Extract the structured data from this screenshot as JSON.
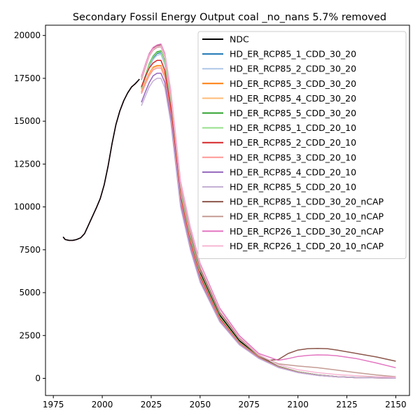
{
  "chart_data": {
    "type": "line",
    "title": "Secondary Fossil Energy Output coal _no_nans 5.7% removed",
    "xlabel": "",
    "ylabel": "",
    "xlim": [
      1971,
      2157
    ],
    "ylim": [
      -1000,
      20600
    ],
    "xticks": [
      1975,
      2000,
      2025,
      2050,
      2075,
      2100,
      2125,
      2150
    ],
    "yticks": [
      0,
      2500,
      5000,
      7500,
      10000,
      12500,
      15000,
      17500,
      20000
    ],
    "grid": false,
    "legend_position": "top-right",
    "history": {
      "x": [
        1980,
        1981,
        1983,
        1985,
        1987,
        1989,
        1991,
        1993,
        1995,
        1997,
        1999,
        2001,
        2003,
        2005,
        2007,
        2009,
        2011,
        2013,
        2015,
        2017,
        2019
      ],
      "y": [
        8250,
        8100,
        8050,
        8050,
        8100,
        8200,
        8450,
        8950,
        9450,
        9950,
        10500,
        11300,
        12400,
        13700,
        14800,
        15600,
        16200,
        16650,
        17000,
        17200,
        17450
      ]
    },
    "series": [
      {
        "name": "NDC",
        "color": "#000000",
        "x": [
          2020,
          2022,
          2024,
          2026,
          2028,
          2030,
          2032,
          2035,
          2040,
          2045,
          2050,
          2060,
          2070,
          2080,
          2090,
          2100,
          2110,
          2120,
          2130,
          2150
        ],
        "y": [
          17600,
          18200,
          18900,
          19250,
          19400,
          19450,
          18800,
          16500,
          11000,
          8300,
          6200,
          3700,
          2200,
          1300,
          700,
          380,
          200,
          100,
          50,
          20
        ]
      },
      {
        "name": "HD_ER_RCP85_1_CDD_30_20",
        "color": "#1f77b4",
        "x": [
          2020,
          2022,
          2024,
          2026,
          2028,
          2030,
          2032,
          2035,
          2040,
          2045,
          2050,
          2060,
          2070,
          2080,
          2090,
          2100,
          2110,
          2120,
          2130,
          2150
        ],
        "y": [
          16900,
          17600,
          18250,
          18700,
          18950,
          19000,
          18400,
          16200,
          10800,
          8100,
          6000,
          3550,
          2100,
          1250,
          680,
          370,
          190,
          95,
          45,
          15
        ]
      },
      {
        "name": "HD_ER_RCP85_2_CDD_30_20",
        "color": "#aec7e8",
        "x": [
          2020,
          2022,
          2024,
          2026,
          2028,
          2030,
          2032,
          2035,
          2040,
          2045,
          2050,
          2060,
          2070,
          2080,
          2090,
          2100,
          2110,
          2120,
          2130,
          2150
        ],
        "y": [
          16850,
          17500,
          18150,
          18600,
          18850,
          18900,
          18300,
          16100,
          10700,
          8000,
          5950,
          3500,
          2080,
          1230,
          670,
          360,
          185,
          90,
          45,
          15
        ]
      },
      {
        "name": "HD_ER_RCP85_3_CDD_30_20",
        "color": "#ff7f0e",
        "x": [
          2020,
          2022,
          2024,
          2026,
          2028,
          2030,
          2032,
          2035,
          2040,
          2045,
          2050,
          2060,
          2070,
          2080,
          2090,
          2100,
          2110,
          2120,
          2130,
          2150
        ],
        "y": [
          16700,
          17300,
          17800,
          18150,
          18250,
          18250,
          17700,
          15600,
          10500,
          7900,
          5900,
          3480,
          2060,
          1220,
          660,
          355,
          180,
          90,
          40,
          15
        ]
      },
      {
        "name": "HD_ER_RCP85_4_CDD_30_20",
        "color": "#ffbb78",
        "x": [
          2020,
          2022,
          2024,
          2026,
          2028,
          2030,
          2032,
          2035,
          2040,
          2045,
          2050,
          2060,
          2070,
          2080,
          2090,
          2100,
          2110,
          2120,
          2130,
          2150
        ],
        "y": [
          16650,
          17250,
          17750,
          18100,
          18200,
          18200,
          17650,
          15550,
          10450,
          7850,
          5850,
          3450,
          2050,
          1210,
          655,
          350,
          180,
          88,
          40,
          15
        ]
      },
      {
        "name": "HD_ER_RCP85_5_CDD_30_20",
        "color": "#2ca02c",
        "x": [
          2020,
          2022,
          2024,
          2026,
          2028,
          2030,
          2032,
          2035,
          2040,
          2045,
          2050,
          2060,
          2070,
          2080,
          2090,
          2100,
          2110,
          2120,
          2130,
          2150
        ],
        "y": [
          16950,
          17650,
          18350,
          18800,
          19050,
          19100,
          18500,
          16300,
          10900,
          8150,
          6050,
          3600,
          2120,
          1260,
          690,
          375,
          195,
          95,
          45,
          15
        ]
      },
      {
        "name": "HD_ER_RCP85_1_CDD_20_10",
        "color": "#98df8a",
        "x": [
          2020,
          2022,
          2024,
          2026,
          2028,
          2030,
          2032,
          2035,
          2040,
          2045,
          2050,
          2060,
          2070,
          2080,
          2090,
          2100,
          2110,
          2120,
          2130,
          2150
        ],
        "y": [
          16900,
          17600,
          18300,
          18750,
          19000,
          19050,
          18450,
          16250,
          10850,
          8120,
          6020,
          3570,
          2110,
          1250,
          685,
          370,
          190,
          95,
          45,
          15
        ]
      },
      {
        "name": "HD_ER_RCP85_2_CDD_20_10",
        "color": "#d62728",
        "x": [
          2020,
          2022,
          2024,
          2026,
          2028,
          2030,
          2032,
          2035,
          2040,
          2045,
          2050,
          2060,
          2070,
          2080,
          2090,
          2100,
          2110,
          2120,
          2130,
          2150
        ],
        "y": [
          17000,
          17600,
          18100,
          18400,
          18550,
          18550,
          17950,
          15800,
          10600,
          7950,
          5930,
          3500,
          2070,
          1230,
          665,
          360,
          185,
          90,
          42,
          15
        ]
      },
      {
        "name": "HD_ER_RCP85_3_CDD_20_10",
        "color": "#ff9896",
        "x": [
          2020,
          2022,
          2024,
          2026,
          2028,
          2030,
          2032,
          2035,
          2040,
          2045,
          2050,
          2060,
          2070,
          2080,
          2090,
          2100,
          2110,
          2120,
          2130,
          2150
        ],
        "y": [
          16600,
          17150,
          17650,
          18000,
          18100,
          18100,
          17550,
          15450,
          10400,
          7800,
          5820,
          3430,
          2040,
          1200,
          650,
          348,
          178,
          87,
          40,
          15
        ]
      },
      {
        "name": "HD_ER_RCP85_4_CDD_20_10",
        "color": "#9467bd",
        "x": [
          2020,
          2022,
          2024,
          2026,
          2028,
          2030,
          2032,
          2035,
          2040,
          2045,
          2050,
          2060,
          2070,
          2080,
          2090,
          2100,
          2110,
          2120,
          2130,
          2150
        ],
        "y": [
          16100,
          16700,
          17250,
          17650,
          17800,
          17800,
          17250,
          15200,
          10200,
          7650,
          5700,
          3350,
          1990,
          1180,
          640,
          340,
          175,
          85,
          40,
          15
        ]
      },
      {
        "name": "HD_ER_RCP85_5_CDD_20_10",
        "color": "#c5b0d5",
        "x": [
          2020,
          2022,
          2024,
          2026,
          2028,
          2030,
          2032,
          2035,
          2040,
          2045,
          2050,
          2060,
          2070,
          2080,
          2090,
          2100,
          2110,
          2120,
          2130,
          2150
        ],
        "y": [
          15900,
          16450,
          17000,
          17350,
          17500,
          17500,
          16950,
          14950,
          10000,
          7500,
          5600,
          3300,
          1960,
          1160,
          630,
          335,
          170,
          85,
          40,
          15
        ]
      },
      {
        "name": "HD_ER_RCP85_1_CDD_30_20_nCAP",
        "color": "#8c564b",
        "x": [
          2020,
          2022,
          2024,
          2026,
          2028,
          2030,
          2032,
          2035,
          2040,
          2045,
          2050,
          2060,
          2070,
          2080,
          2085,
          2090,
          2095,
          2100,
          2105,
          2110,
          2115,
          2120,
          2130,
          2140,
          2150
        ],
        "y": [
          17500,
          18200,
          18900,
          19250,
          19400,
          19450,
          18850,
          16600,
          11200,
          8500,
          6400,
          3850,
          2350,
          1350,
          1050,
          1100,
          1450,
          1650,
          1730,
          1750,
          1730,
          1650,
          1450,
          1250,
          1000
        ]
      },
      {
        "name": "HD_ER_RCP85_1_CDD_20_10_nCAP",
        "color": "#c49c94",
        "x": [
          2020,
          2022,
          2024,
          2026,
          2028,
          2030,
          2032,
          2035,
          2040,
          2045,
          2050,
          2060,
          2070,
          2080,
          2090,
          2100,
          2110,
          2120,
          2130,
          2140,
          2150
        ],
        "y": [
          17400,
          18100,
          18800,
          19150,
          19300,
          19350,
          18750,
          16500,
          11100,
          8400,
          6300,
          3800,
          2300,
          1320,
          850,
          720,
          620,
          480,
          330,
          200,
          100
        ]
      },
      {
        "name": "HD_ER_RCP26_1_CDD_30_20_nCAP",
        "color": "#e377c2",
        "x": [
          2020,
          2022,
          2024,
          2026,
          2028,
          2030,
          2032,
          2035,
          2040,
          2045,
          2050,
          2060,
          2070,
          2080,
          2090,
          2095,
          2100,
          2105,
          2110,
          2115,
          2120,
          2130,
          2140,
          2150
        ],
        "y": [
          17600,
          18300,
          18950,
          19300,
          19450,
          19500,
          18950,
          16800,
          11500,
          8800,
          6700,
          4100,
          2500,
          1450,
          1050,
          1150,
          1280,
          1340,
          1370,
          1360,
          1320,
          1150,
          900,
          620
        ]
      },
      {
        "name": "HD_ER_RCP26_1_CDD_20_10_nCAP",
        "color": "#f7b6d2",
        "x": [
          2020,
          2022,
          2024,
          2026,
          2028,
          2030,
          2032,
          2035,
          2040,
          2045,
          2050,
          2060,
          2070,
          2080,
          2090,
          2100,
          2110,
          2120,
          2130,
          2140,
          2150
        ],
        "y": [
          17500,
          18200,
          18850,
          19200,
          19350,
          19400,
          18850,
          16700,
          11400,
          8700,
          6600,
          4000,
          2400,
          1380,
          800,
          500,
          330,
          220,
          150,
          100,
          70
        ]
      }
    ]
  }
}
